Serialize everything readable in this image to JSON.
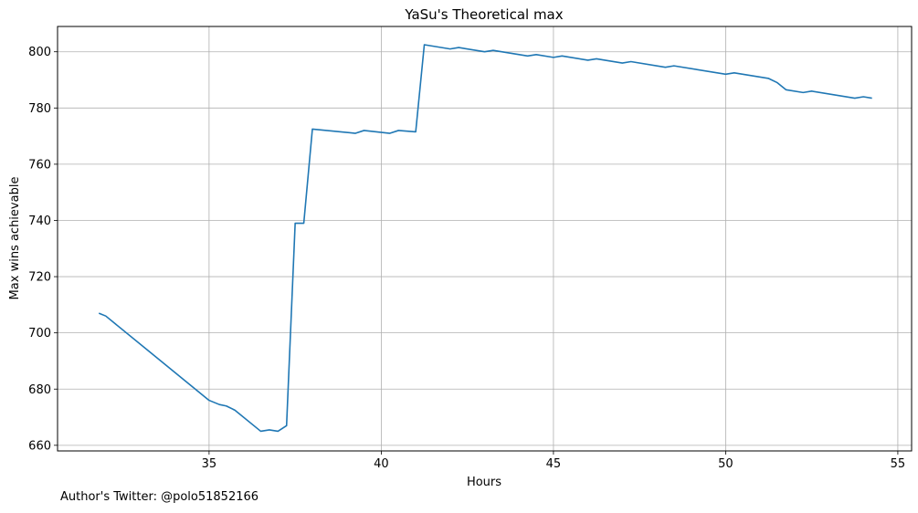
{
  "chart_data": {
    "type": "line",
    "title": "YaSu's Theoretical max",
    "xlabel": "Hours",
    "ylabel": "Max wins achievable",
    "xlim": [
      30.6,
      55.4
    ],
    "ylim": [
      658,
      809
    ],
    "xticks": [
      35,
      40,
      45,
      50,
      55
    ],
    "yticks": [
      660,
      680,
      700,
      720,
      740,
      760,
      780,
      800
    ],
    "grid": true,
    "line_color": "#1f77b4",
    "series": [
      {
        "x": [
          31.8,
          32.0,
          35.0,
          35.3,
          35.5,
          35.75,
          36.5,
          36.75,
          37.0,
          37.25,
          37.5,
          37.75,
          38.0,
          39.25,
          39.5,
          40.25,
          40.5,
          41.0,
          41.25,
          42.0,
          42.25,
          43.0,
          43.25,
          44.25,
          44.5,
          45.0,
          45.25,
          46.0,
          46.25,
          47.0,
          47.25,
          48.25,
          48.5,
          50.0,
          50.25,
          51.25,
          51.5,
          51.75,
          52.25,
          52.5,
          53.75,
          54.0,
          54.25
        ],
        "y": [
          707,
          706,
          676,
          674.5,
          674,
          672.5,
          665,
          665.5,
          665,
          667,
          739,
          739,
          772.5,
          771,
          772,
          771,
          772,
          771.5,
          802.5,
          801,
          801.5,
          800,
          800.5,
          798.5,
          799,
          798,
          798.5,
          797,
          797.5,
          796,
          796.5,
          794.5,
          795,
          792,
          792.5,
          790.5,
          789,
          786.5,
          785.5,
          786,
          783.5,
          784,
          783.5
        ]
      }
    ]
  },
  "footer": {
    "note": "Author's Twitter: @polo51852166"
  }
}
